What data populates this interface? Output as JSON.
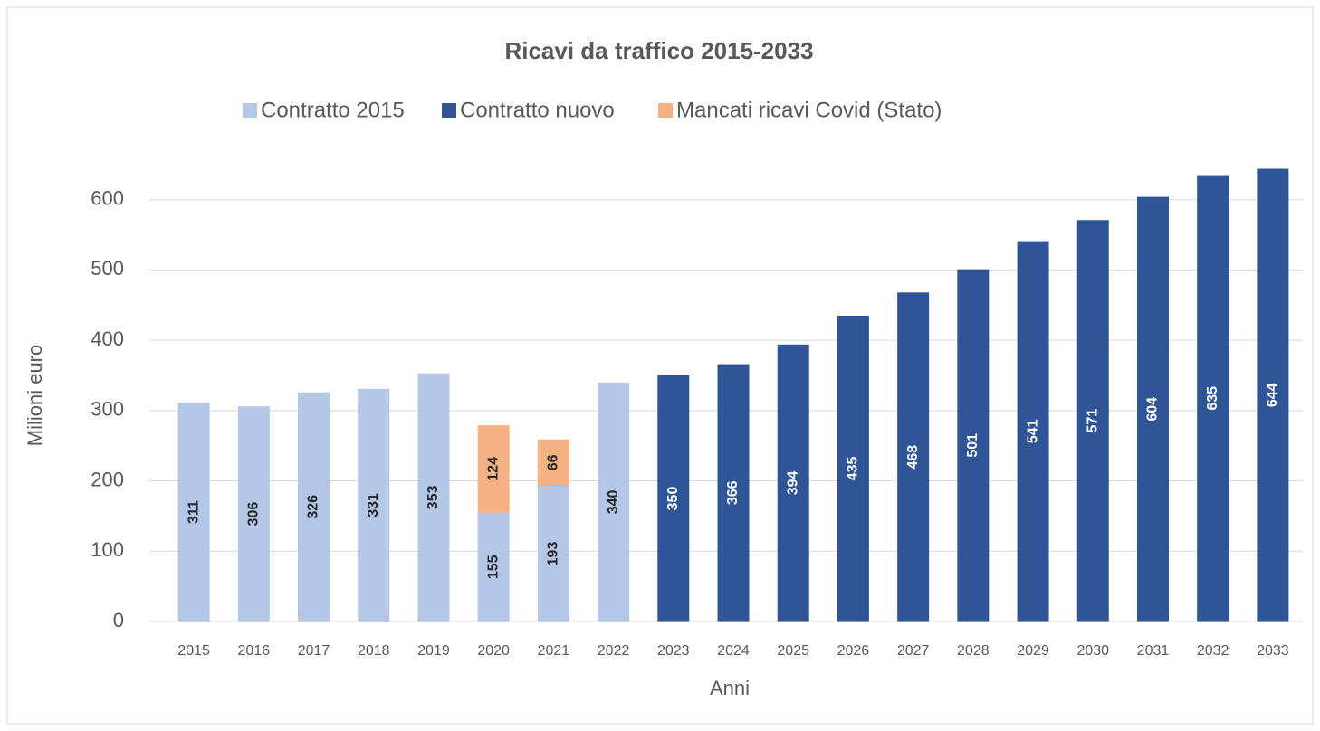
{
  "chart_data": {
    "type": "bar",
    "stacked": true,
    "title": "Ricavi da traffico 2015-2033",
    "x_label": "Anni",
    "y_label": "Milioni euro",
    "categories": [
      "2015",
      "2016",
      "2017",
      "2018",
      "2019",
      "2020",
      "2021",
      "2022",
      "2023",
      "2024",
      "2025",
      "2026",
      "2027",
      "2028",
      "2029",
      "2030",
      "2031",
      "2032",
      "2033"
    ],
    "series": [
      {
        "name": "Contratto 2015",
        "color": "#b4c7e7",
        "values": [
          311,
          306,
          326,
          331,
          353,
          155,
          193,
          340,
          null,
          null,
          null,
          null,
          null,
          null,
          null,
          null,
          null,
          null,
          null
        ]
      },
      {
        "name": "Contratto nuovo",
        "color": "#2f5597",
        "values": [
          null,
          null,
          null,
          null,
          null,
          null,
          null,
          null,
          350,
          366,
          394,
          435,
          468,
          501,
          541,
          571,
          604,
          635,
          644
        ]
      },
      {
        "name": "Mancati ricavi Covid (Stato)",
        "color": "#f4b183",
        "values": [
          null,
          null,
          null,
          null,
          null,
          124,
          66,
          null,
          null,
          null,
          null,
          null,
          null,
          null,
          null,
          null,
          null,
          null,
          null
        ]
      }
    ],
    "ylim": [
      0,
      700
    ],
    "yticks": [
      0,
      100,
      200,
      300,
      400,
      500,
      600
    ],
    "grid": true,
    "legend": "top"
  }
}
